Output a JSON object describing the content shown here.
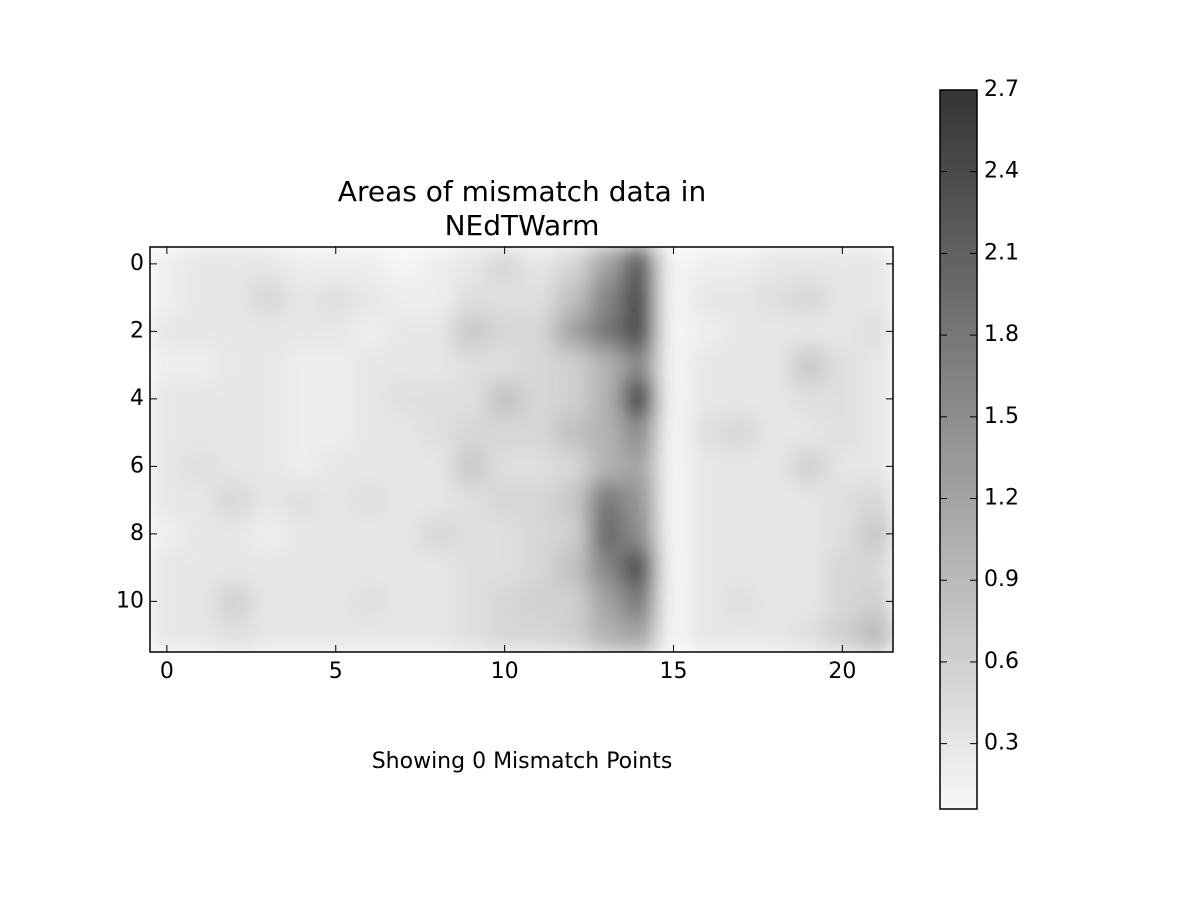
{
  "chart_data": {
    "type": "heatmap",
    "title": [
      "Areas of mismatch data in",
      "NEdTWarm"
    ],
    "xlabel": "Showing 0 Mismatch Points",
    "xlim": [
      -0.5,
      21.5
    ],
    "xticks": [
      0,
      5,
      10,
      15,
      20
    ],
    "ylim": [
      11.5,
      -0.5
    ],
    "yticks": [
      0,
      2,
      4,
      6,
      8,
      10
    ],
    "colormap": [
      "#f8f8f8",
      "#343434"
    ],
    "clim": [
      0.06,
      2.7
    ],
    "cticks": [
      0.3,
      0.6,
      0.9,
      1.2,
      1.5,
      1.8,
      2.1,
      2.4,
      2.7
    ],
    "values": [
      [
        0.2,
        0.3,
        0.3,
        0.3,
        0.2,
        0.2,
        0.2,
        0.1,
        0.2,
        0.3,
        0.5,
        0.3,
        0.5,
        1.2,
        2.2,
        0.1,
        0.2,
        0.2,
        0.3,
        0.3,
        0.3,
        0.3
      ],
      [
        0.2,
        0.3,
        0.3,
        0.5,
        0.3,
        0.4,
        0.3,
        0.2,
        0.2,
        0.4,
        0.4,
        0.4,
        0.8,
        1.6,
        2.4,
        0.1,
        0.3,
        0.3,
        0.4,
        0.5,
        0.3,
        0.3
      ],
      [
        0.3,
        0.3,
        0.3,
        0.3,
        0.3,
        0.3,
        0.2,
        0.3,
        0.3,
        0.7,
        0.5,
        0.5,
        1.2,
        1.8,
        2.4,
        0.1,
        0.2,
        0.3,
        0.3,
        0.3,
        0.3,
        0.4
      ],
      [
        0.2,
        0.2,
        0.3,
        0.3,
        0.2,
        0.2,
        0.3,
        0.3,
        0.3,
        0.4,
        0.4,
        0.5,
        0.6,
        1.0,
        1.6,
        0.1,
        0.3,
        0.3,
        0.3,
        0.7,
        0.4,
        0.3
      ],
      [
        0.3,
        0.3,
        0.3,
        0.3,
        0.2,
        0.2,
        0.3,
        0.4,
        0.4,
        0.4,
        0.8,
        0.5,
        0.6,
        1.0,
        2.6,
        0.1,
        0.3,
        0.3,
        0.3,
        0.4,
        0.4,
        0.3
      ],
      [
        0.3,
        0.3,
        0.3,
        0.3,
        0.2,
        0.2,
        0.3,
        0.3,
        0.4,
        0.5,
        0.5,
        0.5,
        0.8,
        1.0,
        1.5,
        0.1,
        0.4,
        0.5,
        0.3,
        0.3,
        0.4,
        0.3
      ],
      [
        0.3,
        0.4,
        0.3,
        0.3,
        0.2,
        0.3,
        0.3,
        0.3,
        0.3,
        0.7,
        0.4,
        0.4,
        0.5,
        1.0,
        1.2,
        0.1,
        0.3,
        0.3,
        0.3,
        0.6,
        0.3,
        0.3
      ],
      [
        0.3,
        0.3,
        0.5,
        0.3,
        0.4,
        0.3,
        0.4,
        0.3,
        0.3,
        0.4,
        0.5,
        0.5,
        0.7,
        1.8,
        1.4,
        0.1,
        0.3,
        0.3,
        0.3,
        0.3,
        0.4,
        0.5
      ],
      [
        0.2,
        0.3,
        0.3,
        0.2,
        0.3,
        0.3,
        0.3,
        0.3,
        0.5,
        0.4,
        0.4,
        0.5,
        0.6,
        2.0,
        1.5,
        0.1,
        0.3,
        0.3,
        0.3,
        0.3,
        0.4,
        0.7
      ],
      [
        0.3,
        0.3,
        0.3,
        0.3,
        0.3,
        0.3,
        0.3,
        0.3,
        0.3,
        0.4,
        0.4,
        0.5,
        0.8,
        1.6,
        2.4,
        0.1,
        0.3,
        0.3,
        0.3,
        0.3,
        0.5,
        0.5
      ],
      [
        0.3,
        0.3,
        0.6,
        0.3,
        0.3,
        0.3,
        0.4,
        0.3,
        0.3,
        0.4,
        0.5,
        0.6,
        0.6,
        1.2,
        1.8,
        0.1,
        0.3,
        0.4,
        0.3,
        0.3,
        0.5,
        0.6
      ],
      [
        0.3,
        0.3,
        0.4,
        0.3,
        0.3,
        0.3,
        0.3,
        0.3,
        0.3,
        0.4,
        0.5,
        0.5,
        0.6,
        1.0,
        1.2,
        0.1,
        0.3,
        0.3,
        0.3,
        0.4,
        0.6,
        0.9
      ]
    ]
  }
}
